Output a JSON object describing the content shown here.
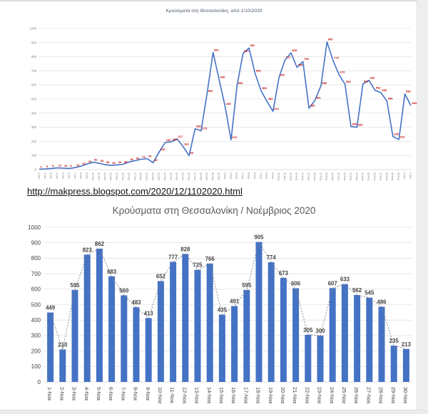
{
  "link": {
    "text": "http://makpress.blogspot.com/2020/12/1102020.html"
  },
  "colors": {
    "series_blue": "#4472C4",
    "label_red": "#C00000",
    "grid": "#D9D9D9",
    "axis_line": "#BFBFBF",
    "axis_text_small": "#7F7F7F",
    "axis_text_dark": "#404040",
    "title_small": "#44546A",
    "title_large": "#595959",
    "trend_dash": "#7F7F7F"
  },
  "chart_data": [
    {
      "type": "line",
      "title": "Κρούσματα στη Θεσσαλονίκη, από 1/10/2020",
      "x": [
        "1-Οκτ",
        "2-Οκτ",
        "3-Οκτ",
        "4-Οκτ",
        "5-Οκτ",
        "6-Οκτ",
        "7-Οκτ",
        "8-Οκτ",
        "9-Οκτ",
        "10-Οκτ",
        "11-Οκτ",
        "12-Οκτ",
        "13-Οκτ",
        "14-Οκτ",
        "15-Οκτ",
        "16-Οκτ",
        "17-Οκτ",
        "18-Οκτ",
        "19-Οκτ",
        "20-Οκτ",
        "21-Οκτ",
        "22-Οκτ",
        "23-Οκτ",
        "24-Οκτ",
        "25-Οκτ",
        "26-Οκτ",
        "27-Οκτ",
        "28-Οκτ",
        "29-Οκτ",
        "30-Οκτ",
        "31-Οκτ",
        "1-Νοε",
        "2-Νοε",
        "3-Νοε",
        "4-Νοε",
        "5-Νοε",
        "6-Νοε",
        "7-Νοε",
        "8-Νοε",
        "9-Νοε",
        "10-Νοε",
        "11-Νοε",
        "12-Νοε",
        "13-Νοε",
        "14-Νοε",
        "15-Νοε",
        "16-Νοε",
        "17-Νοε",
        "18-Νοε",
        "19-Νοε",
        "20-Νοε",
        "21-Νοε",
        "22-Νοε",
        "23-Νοε",
        "24-Νοε",
        "25-Νοε",
        "26-Νοε",
        "27-Νοε",
        "28-Νοε",
        "29-Νοε",
        "30-Νοε",
        "1-Δεκ",
        "2-Δεκ"
      ],
      "values": [
        2,
        5,
        8,
        12,
        10,
        8,
        14,
        25,
        40,
        52,
        45,
        35,
        30,
        34,
        38,
        54,
        63,
        73,
        78,
        49,
        125,
        192,
        196,
        217,
        163,
        99,
        290,
        275,
        540,
        831,
        639,
        449,
        210,
        595,
        823,
        862,
        683,
        560,
        483,
        413,
        652,
        777,
        828,
        725,
        766,
        435,
        491,
        595,
        905,
        774,
        673,
        606,
        305,
        300,
        607,
        633,
        562,
        545,
        486,
        235,
        213,
        536,
        453
      ],
      "ylim": [
        0,
        1000
      ],
      "ytick_step": 100,
      "grid": true,
      "legend": "none",
      "point_labels": true
    },
    {
      "type": "bar",
      "title": "Κρούσματα στη Θεσσαλονίκη / Νοέμβριος 2020",
      "categories": [
        "1-Νοε",
        "2-Νοε",
        "3-Νοε",
        "4-Νοε",
        "5-Νοε",
        "6-Νοε",
        "7-Νοε",
        "8-Νοε",
        "9-Νοε",
        "10-Νοε",
        "11-Νοε",
        "12-Νοε",
        "13-Νοε",
        "14-Νοε",
        "15-Νοε",
        "16-Νοε",
        "17-Νοε",
        "18-Νοε",
        "19-Νοε",
        "20-Νοε",
        "21-Νοε",
        "22-Νοε",
        "23-Νοε",
        "24-Νοε",
        "25-Νοε",
        "26-Νοε",
        "27-Νοε",
        "28-Νοε",
        "29-Νοε",
        "30-Νοε"
      ],
      "values": [
        449,
        210,
        595,
        823,
        862,
        683,
        560,
        483,
        413,
        652,
        777,
        828,
        725,
        766,
        435,
        491,
        595,
        905,
        774,
        673,
        606,
        305,
        300,
        607,
        633,
        562,
        545,
        486,
        235,
        213
      ],
      "ylim": [
        0,
        1000
      ],
      "ytick_step": 100,
      "grid": true,
      "legend": "none",
      "bar_labels": true,
      "trendline": "dotted"
    }
  ]
}
